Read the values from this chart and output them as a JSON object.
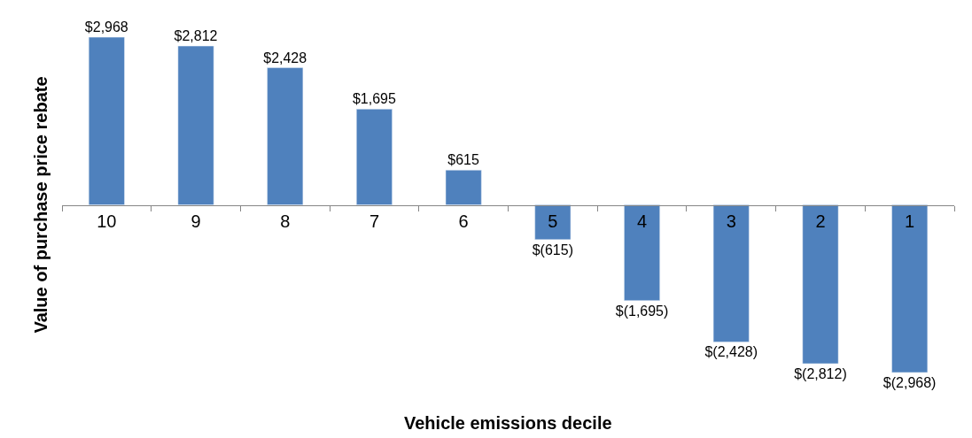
{
  "chart_data": {
    "type": "bar",
    "xlabel": "Vehicle emissions decile",
    "ylabel": "Value of purchase price rebate",
    "categories": [
      "10",
      "9",
      "8",
      "7",
      "6",
      "5",
      "4",
      "3",
      "2",
      "1"
    ],
    "values": [
      2968,
      2812,
      2428,
      1695,
      615,
      -615,
      -1695,
      -2428,
      -2812,
      -2968
    ],
    "value_labels": [
      "$2,968",
      "$2,812",
      "$2,428",
      "$1,695",
      "$615",
      "$(615)",
      "$(1,695)",
      "$(2,428)",
      "$(2,812)",
      "$(2,968)"
    ],
    "color": "#4f81bd",
    "tick_labels": "x"
  }
}
